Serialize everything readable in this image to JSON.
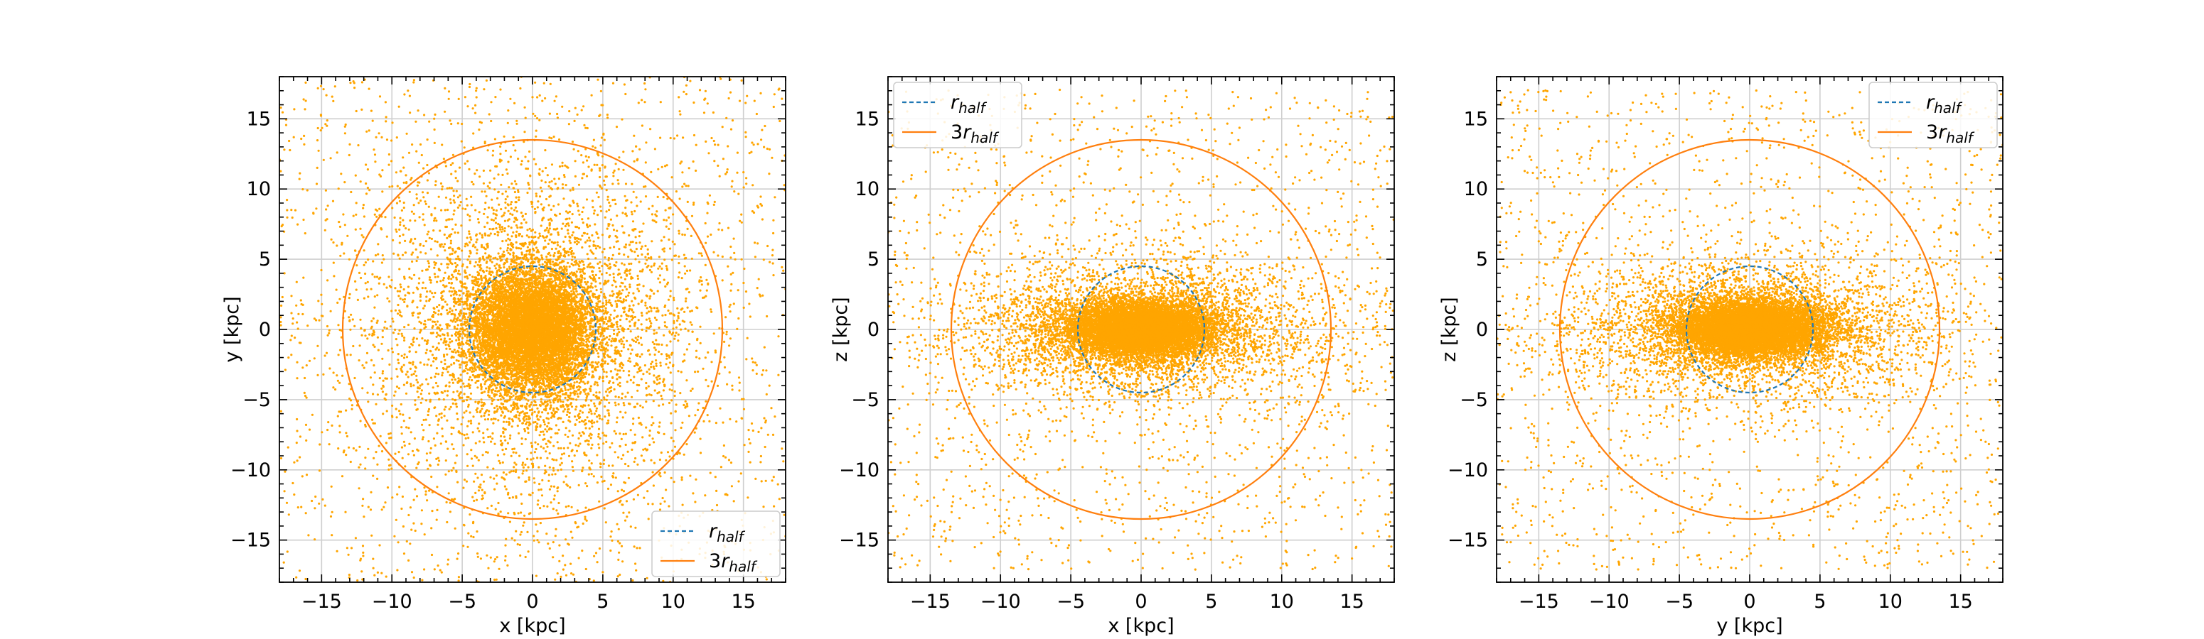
{
  "colors": {
    "particles": "#ffa500",
    "half_radius_circle": "#1f77b4",
    "three_half_radius_circle": "#ff7f0e",
    "grid": "#cfcfcf",
    "axes": "#000000"
  },
  "chart_data": [
    {
      "type": "scatter",
      "panel": "xy",
      "xlabel": "x [kpc]",
      "ylabel": "y [kpc]",
      "xlim": [
        -18,
        18
      ],
      "ylim": [
        -18,
        18
      ],
      "xticks": [
        "−15",
        "−10",
        "−5",
        "0",
        "5",
        "10",
        "15"
      ],
      "yticks": [
        "−15",
        "−10",
        "−5",
        "0",
        "5",
        "10",
        "15"
      ],
      "grid": true,
      "legend_position": "lower-right",
      "particle_distribution": {
        "core_scale_kpc": 2.2,
        "halo_scale_kpc": 6.0,
        "flattening": 1.0
      },
      "series": [
        {
          "name": "r_half",
          "label_main": "r",
          "label_sub": "half",
          "style": "dashed",
          "radius": 4.5,
          "center": [
            0,
            0
          ]
        },
        {
          "name": "3r_half",
          "label_main": "3r",
          "label_sub": "half",
          "style": "solid",
          "radius": 13.5,
          "center": [
            0,
            0
          ]
        }
      ]
    },
    {
      "type": "scatter",
      "panel": "xz",
      "xlabel": "x [kpc]",
      "ylabel": "z [kpc]",
      "xlim": [
        -18,
        18
      ],
      "ylim": [
        -18,
        18
      ],
      "xticks": [
        "−15",
        "−10",
        "−5",
        "0",
        "5",
        "10",
        "15"
      ],
      "yticks": [
        "−15",
        "−10",
        "−5",
        "0",
        "5",
        "10",
        "15"
      ],
      "grid": true,
      "legend_position": "upper-left",
      "particle_distribution": {
        "core_scale_kpc": 2.6,
        "halo_scale_kpc": 6.5,
        "flattening": 0.38
      },
      "series": [
        {
          "name": "r_half",
          "label_main": "r",
          "label_sub": "half",
          "style": "dashed",
          "radius": 4.5,
          "center": [
            0,
            0
          ]
        },
        {
          "name": "3r_half",
          "label_main": "3r",
          "label_sub": "half",
          "style": "solid",
          "radius": 13.5,
          "center": [
            0,
            0
          ]
        }
      ]
    },
    {
      "type": "scatter",
      "panel": "yz",
      "xlabel": "y [kpc]",
      "ylabel": "z [kpc]",
      "xlim": [
        -18,
        18
      ],
      "ylim": [
        -18,
        18
      ],
      "xticks": [
        "−15",
        "−10",
        "−5",
        "0",
        "5",
        "10",
        "15"
      ],
      "yticks": [
        "−15",
        "−10",
        "−5",
        "0",
        "5",
        "10",
        "15"
      ],
      "grid": true,
      "legend_position": "upper-right",
      "particle_distribution": {
        "core_scale_kpc": 2.6,
        "halo_scale_kpc": 6.5,
        "flattening": 0.38
      },
      "series": [
        {
          "name": "r_half",
          "label_main": "r",
          "label_sub": "half",
          "style": "dashed",
          "radius": 4.5,
          "center": [
            0,
            0
          ]
        },
        {
          "name": "3r_half",
          "label_main": "3r",
          "label_sub": "half",
          "style": "solid",
          "radius": 13.5,
          "center": [
            0,
            0
          ]
        }
      ]
    }
  ]
}
